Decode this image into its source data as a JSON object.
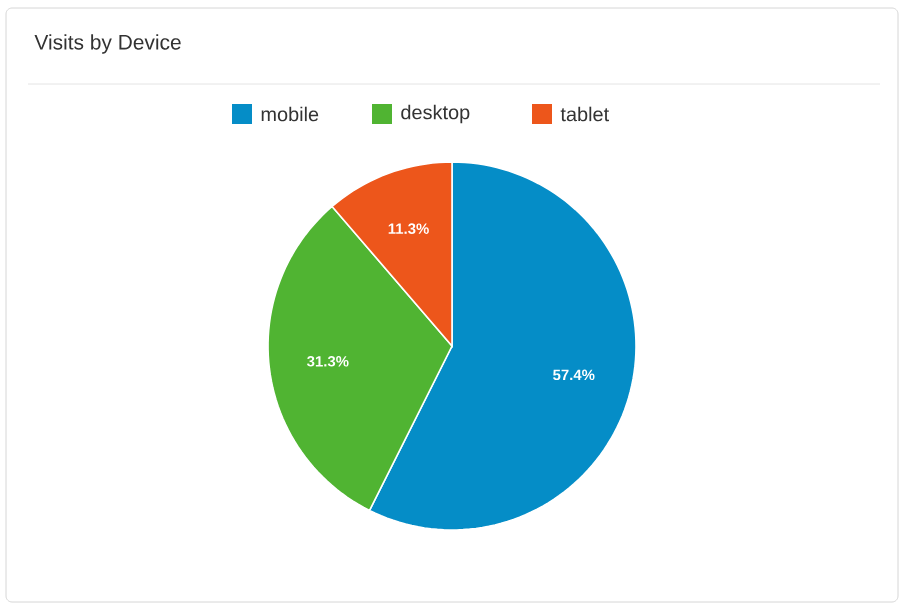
{
  "chart_data": {
    "type": "pie",
    "title": "Visits by Device",
    "categories": [
      "mobile",
      "desktop",
      "tablet"
    ],
    "values": [
      57.4,
      31.3,
      11.3
    ],
    "value_labels": [
      "57.4%",
      "31.3%",
      "11.3%"
    ],
    "colors": [
      "#058dc7",
      "#50b432",
      "#ed561b"
    ],
    "legend": "top"
  }
}
